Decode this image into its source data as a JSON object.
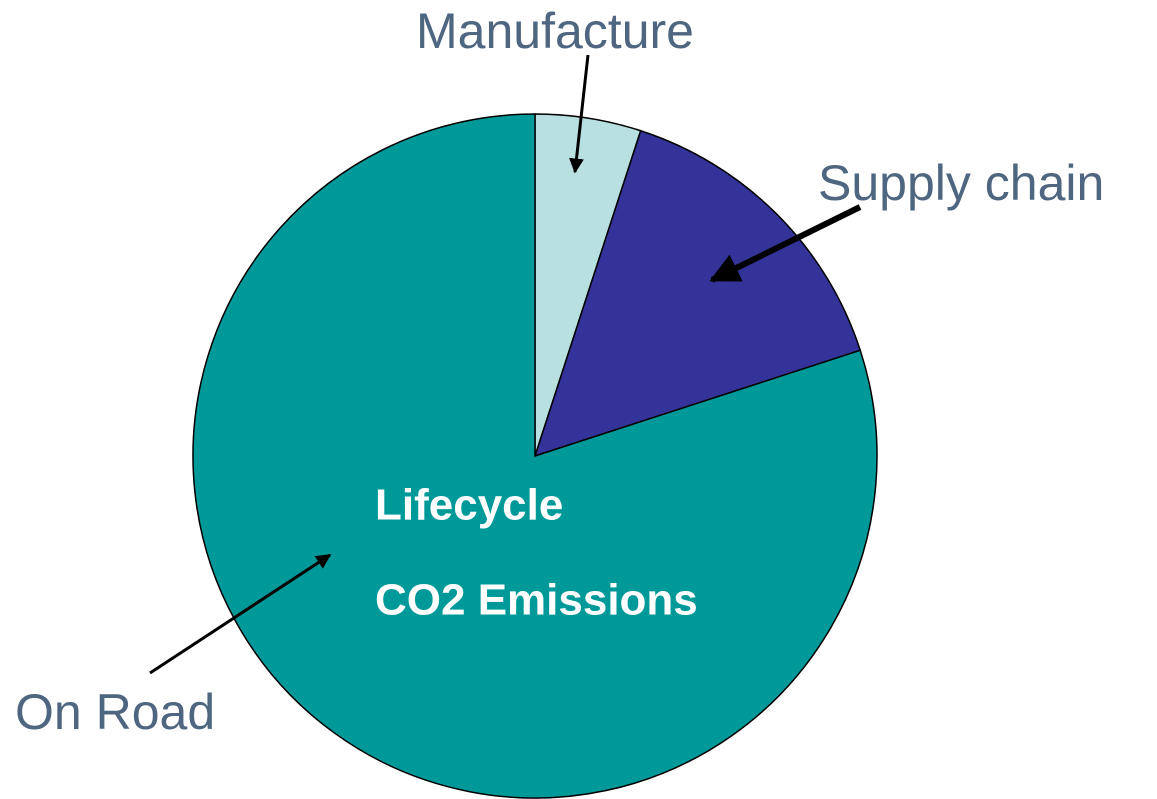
{
  "chart_data": {
    "type": "pie",
    "title_lines": [
      "Lifecycle",
      "CO2 Emissions"
    ],
    "categories": [
      "Manufacture",
      "Supply chain",
      "On Road"
    ],
    "values": [
      5,
      15,
      80
    ],
    "colors": [
      "#b8e0e0",
      "#333399",
      "#009999"
    ],
    "start_angle": 0,
    "direction": "clockwise"
  }
}
